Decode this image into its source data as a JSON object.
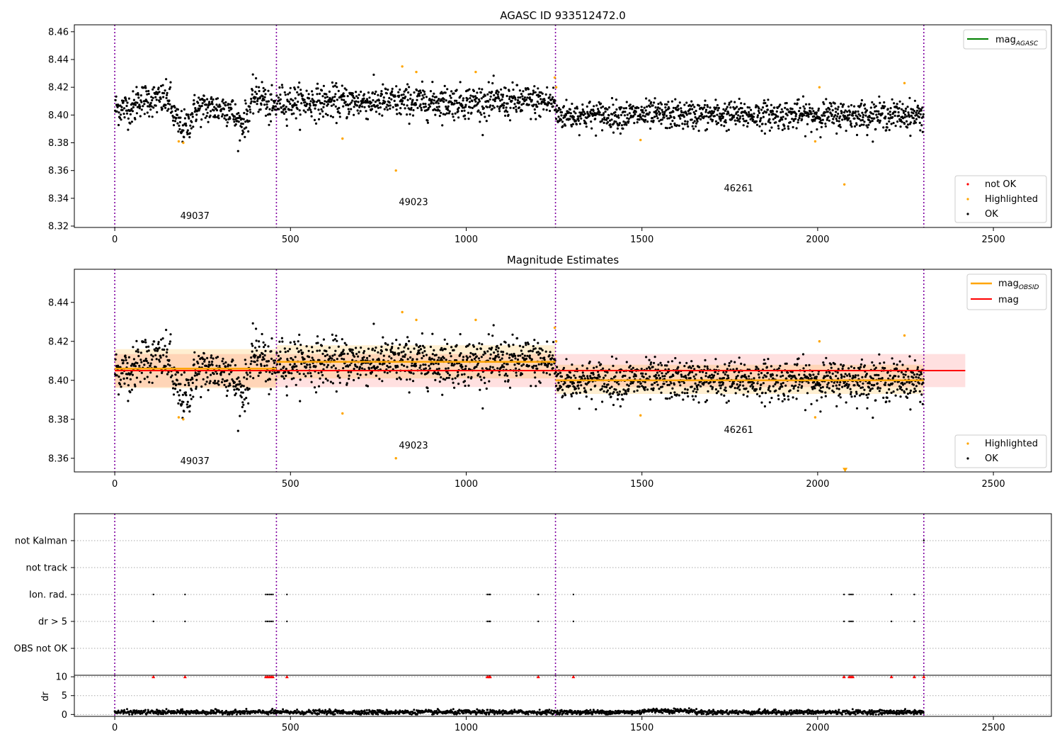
{
  "chart_data": [
    {
      "type": "scatter",
      "title": "AGASC ID 933512472.0",
      "xlabel": "",
      "ylabel": "",
      "xlim": [
        -115,
        2665
      ],
      "ylim": [
        8.319,
        8.465
      ],
      "x_ticks": [
        0,
        500,
        1000,
        1500,
        2000,
        2500
      ],
      "y_ticks": [
        8.32,
        8.34,
        8.36,
        8.38,
        8.4,
        8.42,
        8.44,
        8.46
      ],
      "obs_boundaries": [
        0,
        460,
        1254,
        2302
      ],
      "obs_labels": [
        {
          "text": "49037",
          "x": 228,
          "y": 8.325
        },
        {
          "text": "49023",
          "x": 850,
          "y": 8.335
        },
        {
          "text": "46261",
          "x": 1775,
          "y": 8.345
        }
      ],
      "legend_top": {
        "label": "mag",
        "subscript": "AGASC",
        "color": "#008000",
        "position": "top-right"
      },
      "legend_bottom": {
        "position": "bottom-right",
        "entries": [
          {
            "label": "not OK",
            "color": "#ff0000"
          },
          {
            "label": "Highlighted",
            "color": "#ffa500"
          },
          {
            "label": "OK",
            "color": "#000000"
          }
        ]
      },
      "series": [
        {
          "name": "OK",
          "color": "#000000",
          "segments": [
            {
              "x0": 0,
              "x1": 460,
              "mean": 8.405,
              "spread": 0.007
            },
            {
              "x0": 460,
              "x1": 1254,
              "mean": 8.4095,
              "spread": 0.007
            },
            {
              "x0": 1254,
              "x1": 2302,
              "mean": 8.4,
              "spread": 0.006
            }
          ]
        },
        {
          "name": "Highlighted",
          "color": "#ffa500",
          "x": [
            182,
            195,
            648,
            800,
            818,
            858,
            1027,
            1252,
            1256,
            1496,
            1993,
            2005,
            2076,
            2247
          ],
          "y": [
            8.381,
            8.38,
            8.383,
            8.36,
            8.435,
            8.431,
            8.431,
            8.427,
            8.42,
            8.382,
            8.381,
            8.42,
            8.35,
            8.423
          ]
        }
      ]
    },
    {
      "type": "scatter",
      "title": "Magnitude Estimates",
      "xlabel": "",
      "ylabel": "",
      "xlim": [
        -115,
        2665
      ],
      "ylim": [
        8.353,
        8.457
      ],
      "x_ticks": [
        0,
        500,
        1000,
        1500,
        2000,
        2500
      ],
      "y_ticks": [
        8.36,
        8.38,
        8.4,
        8.42,
        8.44
      ],
      "obs_boundaries": [
        0,
        460,
        1254,
        2302
      ],
      "obs_labels": [
        {
          "text": "49037",
          "x": 228,
          "y": 8.357
        },
        {
          "text": "49023",
          "x": 850,
          "y": 8.365
        },
        {
          "text": "46261",
          "x": 1775,
          "y": 8.373
        }
      ],
      "legend_top": {
        "position": "top-right",
        "entries": [
          {
            "label": "mag",
            "subscript": "OBSID",
            "color": "#ffa500"
          },
          {
            "label": "mag",
            "subscript": "",
            "color": "#ff0000"
          }
        ]
      },
      "legend_bottom": {
        "position": "bottom-right",
        "entries": [
          {
            "label": "Highlighted",
            "color": "#ffa500"
          },
          {
            "label": "OK",
            "color": "#000000"
          }
        ]
      },
      "mag": {
        "value": 8.405,
        "band": [
          8.3965,
          8.4135
        ],
        "x0": 0,
        "x1": 2420
      },
      "mag_obsid": [
        {
          "x0": 0,
          "x1": 460,
          "value": 8.406,
          "band": [
            8.396,
            8.416
          ]
        },
        {
          "x0": 460,
          "x1": 1254,
          "value": 8.4095,
          "band": [
            8.401,
            8.418
          ]
        },
        {
          "x0": 1254,
          "x1": 2302,
          "value": 8.4,
          "band": [
            8.393,
            8.408
          ]
        }
      ],
      "out_of_range_marker": {
        "x": 2078,
        "y": 8.354
      }
    },
    {
      "type": "scatter",
      "title": "",
      "flags_panel": {
        "xlim": [
          -115,
          2665
        ],
        "row_labels": [
          "not Kalman",
          "not track",
          "Ion. rad.",
          "dr > 5",
          "OBS not OK"
        ],
        "ion_rad_x": [
          110,
          200,
          430,
          435,
          440,
          445,
          450,
          490,
          1060,
          1065,
          1068,
          1205,
          1305,
          2075,
          2090,
          2095,
          2100,
          2210,
          2275
        ],
        "dr_gt5_x": [
          110,
          200,
          430,
          435,
          440,
          445,
          450,
          490,
          1060,
          1065,
          1068,
          1205,
          1305,
          2075,
          2090,
          2095,
          2100,
          2210,
          2275
        ],
        "not_kalman_x": [
          2302
        ]
      },
      "dr_panel": {
        "ylabel": "dr",
        "ylim": [
          -0.5,
          10.4
        ],
        "y_ticks": [
          0,
          5,
          10
        ],
        "x_ticks": [
          0,
          500,
          1000,
          1500,
          2000,
          2500
        ],
        "typical_dr": 0.6,
        "clipped_value": 10,
        "clipped_x": [
          110,
          200,
          430,
          435,
          440,
          445,
          450,
          490,
          1060,
          1065,
          1068,
          1205,
          1305,
          2075,
          2090,
          2095,
          2100,
          2210,
          2275,
          2302
        ]
      }
    }
  ]
}
